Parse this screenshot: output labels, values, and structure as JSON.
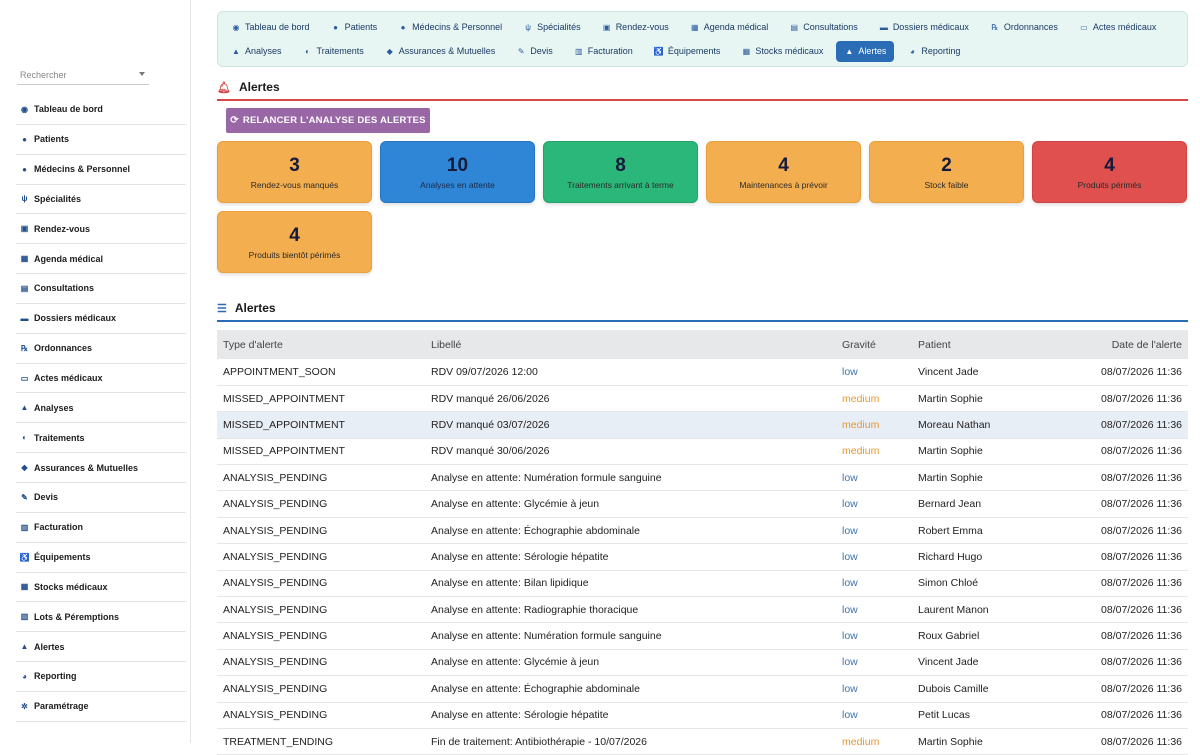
{
  "sidebar": {
    "search_placeholder": "Rechercher",
    "items": [
      {
        "label": "Tableau de bord",
        "icon": "dashboard-icon",
        "glyph": "◉"
      },
      {
        "label": "Patients",
        "icon": "user-icon",
        "glyph": "●"
      },
      {
        "label": "Médecins & Personnel",
        "icon": "doctor-icon",
        "glyph": "●"
      },
      {
        "label": "Spécialités",
        "icon": "stethoscope-icon",
        "glyph": "ψ"
      },
      {
        "label": "Rendez-vous",
        "icon": "calendar-check-icon",
        "glyph": "▣"
      },
      {
        "label": "Agenda médical",
        "icon": "calendar-icon",
        "glyph": "▦"
      },
      {
        "label": "Consultations",
        "icon": "clipboard-icon",
        "glyph": "▤"
      },
      {
        "label": "Dossiers médicaux",
        "icon": "folder-icon",
        "glyph": "▬"
      },
      {
        "label": "Ordonnances",
        "icon": "prescription-icon",
        "glyph": "℞"
      },
      {
        "label": "Actes médicaux",
        "icon": "bed-icon",
        "glyph": "▭"
      },
      {
        "label": "Analyses",
        "icon": "flask-icon",
        "glyph": "▲"
      },
      {
        "label": "Traitements",
        "icon": "pills-icon",
        "glyph": "◐"
      },
      {
        "label": "Assurances & Mutuelles",
        "icon": "shield-icon",
        "glyph": "◆"
      },
      {
        "label": "Devis",
        "icon": "file-signature-icon",
        "glyph": "✎"
      },
      {
        "label": "Facturation",
        "icon": "invoice-icon",
        "glyph": "▥"
      },
      {
        "label": "Équipements",
        "icon": "wheelchair-icon",
        "glyph": "♿"
      },
      {
        "label": "Stocks médicaux",
        "icon": "boxes-icon",
        "glyph": "▦"
      },
      {
        "label": "Lots & Péremptions",
        "icon": "barcode-icon",
        "glyph": "▥"
      },
      {
        "label": "Alertes",
        "icon": "warning-icon",
        "glyph": "▲"
      },
      {
        "label": "Reporting",
        "icon": "chart-pie-icon",
        "glyph": "◕"
      },
      {
        "label": "Paramétrage",
        "icon": "gear-icon",
        "glyph": "✲"
      }
    ]
  },
  "nav": {
    "row1": [
      {
        "label": "Tableau de bord",
        "icon": "dashboard-icon",
        "glyph": "◉"
      },
      {
        "label": "Patients",
        "icon": "user-icon",
        "glyph": "●"
      },
      {
        "label": "Médecins & Personnel",
        "icon": "doctor-icon",
        "glyph": "●"
      },
      {
        "label": "Spécialités",
        "icon": "stethoscope-icon",
        "glyph": "ψ"
      },
      {
        "label": "Rendez-vous",
        "icon": "calendar-check-icon",
        "glyph": "▣"
      },
      {
        "label": "Agenda médical",
        "icon": "calendar-icon",
        "glyph": "▦"
      },
      {
        "label": "Consultations",
        "icon": "clipboard-icon",
        "glyph": "▤"
      },
      {
        "label": "Dossiers médicaux",
        "icon": "folder-icon",
        "glyph": "▬"
      },
      {
        "label": "Ordonnances",
        "icon": "prescription-icon",
        "glyph": "℞"
      },
      {
        "label": "Actes médicaux",
        "icon": "bed-icon",
        "glyph": "▭"
      }
    ],
    "row2": [
      {
        "label": "Analyses",
        "icon": "flask-icon",
        "glyph": "▲"
      },
      {
        "label": "Traitements",
        "icon": "pills-icon",
        "glyph": "◐"
      },
      {
        "label": "Assurances & Mutuelles",
        "icon": "shield-icon",
        "glyph": "◆"
      },
      {
        "label": "Devis",
        "icon": "file-signature-icon",
        "glyph": "✎"
      },
      {
        "label": "Facturation",
        "icon": "invoice-icon",
        "glyph": "▥"
      },
      {
        "label": "Équipements",
        "icon": "wheelchair-icon",
        "glyph": "♿"
      },
      {
        "label": "Stocks médicaux",
        "icon": "boxes-icon",
        "glyph": "▦"
      },
      {
        "label": "Alertes",
        "icon": "warning-icon",
        "glyph": "▲",
        "active": true
      },
      {
        "label": "Reporting",
        "icon": "chart-pie-icon",
        "glyph": "◕"
      }
    ]
  },
  "alerts_section": {
    "title": "Alertes",
    "relaunch_label": "RELANCER L'ANALYSE DES ALERTES"
  },
  "cards": [
    {
      "value": "3",
      "label": "Rendez-vous manqués",
      "color": "orange"
    },
    {
      "value": "10",
      "label": "Analyses en attente",
      "color": "blue"
    },
    {
      "value": "8",
      "label": "Traitements arrivant à terme",
      "color": "green"
    },
    {
      "value": "4",
      "label": "Maintenances à prévoir",
      "color": "orange"
    },
    {
      "value": "2",
      "label": "Stock faible",
      "color": "orange"
    },
    {
      "value": "4",
      "label": "Produits périmés",
      "color": "red"
    },
    {
      "value": "4",
      "label": "Produits bientôt périmés",
      "color": "orange"
    }
  ],
  "list_section": {
    "title": "Alertes"
  },
  "table": {
    "headers": {
      "type": "Type d'alerte",
      "label": "Libellé",
      "severity": "Gravité",
      "patient": "Patient",
      "date": "Date de l'alerte"
    },
    "rows": [
      {
        "type": "APPOINTMENT_SOON",
        "label": "RDV 09/07/2026 12:00",
        "severity": "low",
        "patient": "Vincent Jade",
        "date": "08/07/2026 11:36"
      },
      {
        "type": "MISSED_APPOINTMENT",
        "label": "RDV manqué 26/06/2026",
        "severity": "medium",
        "patient": "Martin Sophie",
        "date": "08/07/2026 11:36"
      },
      {
        "type": "MISSED_APPOINTMENT",
        "label": "RDV manqué 03/07/2026",
        "severity": "medium",
        "patient": "Moreau Nathan",
        "date": "08/07/2026 11:36",
        "highlight": true
      },
      {
        "type": "MISSED_APPOINTMENT",
        "label": "RDV manqué 30/06/2026",
        "severity": "medium",
        "patient": "Martin Sophie",
        "date": "08/07/2026 11:36"
      },
      {
        "type": "ANALYSIS_PENDING",
        "label": "Analyse en attente: Numération formule sanguine",
        "severity": "low",
        "patient": "Martin Sophie",
        "date": "08/07/2026 11:36"
      },
      {
        "type": "ANALYSIS_PENDING",
        "label": "Analyse en attente: Glycémie à jeun",
        "severity": "low",
        "patient": "Bernard Jean",
        "date": "08/07/2026 11:36"
      },
      {
        "type": "ANALYSIS_PENDING",
        "label": "Analyse en attente: Échographie abdominale",
        "severity": "low",
        "patient": "Robert Emma",
        "date": "08/07/2026 11:36"
      },
      {
        "type": "ANALYSIS_PENDING",
        "label": "Analyse en attente: Sérologie hépatite",
        "severity": "low",
        "patient": "Richard Hugo",
        "date": "08/07/2026 11:36"
      },
      {
        "type": "ANALYSIS_PENDING",
        "label": "Analyse en attente: Bilan lipidique",
        "severity": "low",
        "patient": "Simon Chloé",
        "date": "08/07/2026 11:36"
      },
      {
        "type": "ANALYSIS_PENDING",
        "label": "Analyse en attente: Radiographie thoracique",
        "severity": "low",
        "patient": "Laurent Manon",
        "date": "08/07/2026 11:36"
      },
      {
        "type": "ANALYSIS_PENDING",
        "label": "Analyse en attente: Numération formule sanguine",
        "severity": "low",
        "patient": "Roux Gabriel",
        "date": "08/07/2026 11:36"
      },
      {
        "type": "ANALYSIS_PENDING",
        "label": "Analyse en attente: Glycémie à jeun",
        "severity": "low",
        "patient": "Vincent Jade",
        "date": "08/07/2026 11:36"
      },
      {
        "type": "ANALYSIS_PENDING",
        "label": "Analyse en attente: Échographie abdominale",
        "severity": "low",
        "patient": "Dubois Camille",
        "date": "08/07/2026 11:36"
      },
      {
        "type": "ANALYSIS_PENDING",
        "label": "Analyse en attente: Sérologie hépatite",
        "severity": "low",
        "patient": "Petit Lucas",
        "date": "08/07/2026 11:36"
      },
      {
        "type": "TREATMENT_ENDING",
        "label": "Fin de traitement: Antibiothérapie - 10/07/2026",
        "severity": "medium",
        "patient": "Martin Sophie",
        "date": "08/07/2026 11:36"
      }
    ]
  }
}
